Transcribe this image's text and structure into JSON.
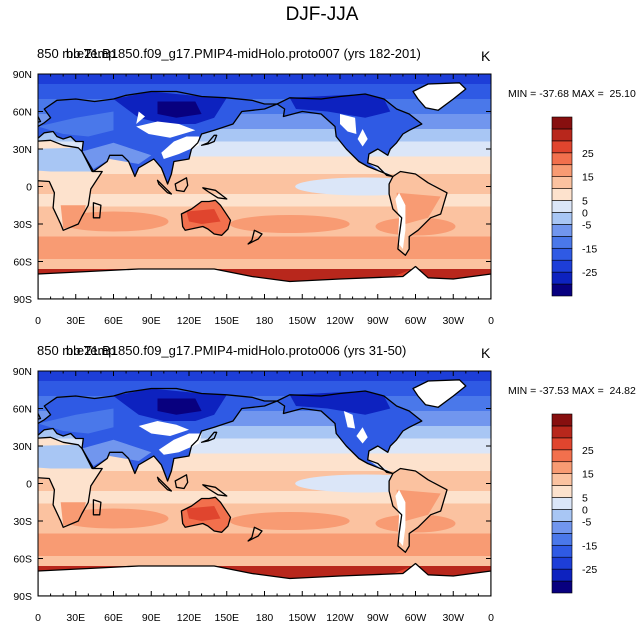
{
  "figure": {
    "title": "DJF-JJA"
  },
  "colors": {
    "levels": [
      -30,
      -25,
      -20,
      -15,
      -10,
      -5,
      0,
      5,
      10,
      15,
      20,
      25,
      30
    ],
    "palette": [
      "#08007f",
      "#0d22bf",
      "#1d3ed8",
      "#2f5ae4",
      "#4a78ea",
      "#7196ee",
      "#a8c6f4",
      "#dbe6f8",
      "#fde2cd",
      "#fbc2a0",
      "#f89b73",
      "#f2704d",
      "#e0452e",
      "#b8271c",
      "#870f0f"
    ],
    "land_missing": "#ffffff",
    "coastline": "#000000"
  },
  "chart_data": [
    {
      "type": "heatmap",
      "title_left": "850 mb Temp",
      "title_case": "b.e21.B1850.f09_g17.PMIP4-midHolo.proto007 (yrs 182-201)",
      "units": "K",
      "stats_text": "MIN = -37.68 MAX =  25.10",
      "min": -37.68,
      "max": 25.1,
      "x_ticks": [
        "0",
        "30E",
        "60E",
        "90E",
        "120E",
        "150E",
        "180",
        "150W",
        "120W",
        "90W",
        "60W",
        "30W",
        "0"
      ],
      "y_ticks": [
        "90N",
        "60N",
        "30N",
        "0",
        "30S",
        "60S",
        "90S"
      ],
      "colorbar_labels": [
        "25",
        "15",
        "5",
        "0",
        "-5",
        "-15",
        "-25"
      ],
      "field_note": "DJF minus JJA 850 mb temperature difference"
    },
    {
      "type": "heatmap",
      "title_left": "850 mb Temp",
      "title_case": "b.e21.B1850.f09_g17.PMIP4-midHolo.proto006 (yrs 31-50)",
      "units": "K",
      "stats_text": "MIN = -37.53 MAX =  24.82",
      "min": -37.53,
      "max": 24.82,
      "x_ticks": [
        "0",
        "30E",
        "60E",
        "90E",
        "120E",
        "150E",
        "180",
        "150W",
        "120W",
        "90W",
        "60W",
        "30W",
        "0"
      ],
      "y_ticks": [
        "90N",
        "60N",
        "30N",
        "0",
        "30S",
        "60S",
        "90S"
      ],
      "colorbar_labels": [
        "25",
        "15",
        "5",
        "0",
        "-5",
        "-15",
        "-25"
      ],
      "field_note": "DJF minus JJA 850 mb temperature difference"
    }
  ]
}
